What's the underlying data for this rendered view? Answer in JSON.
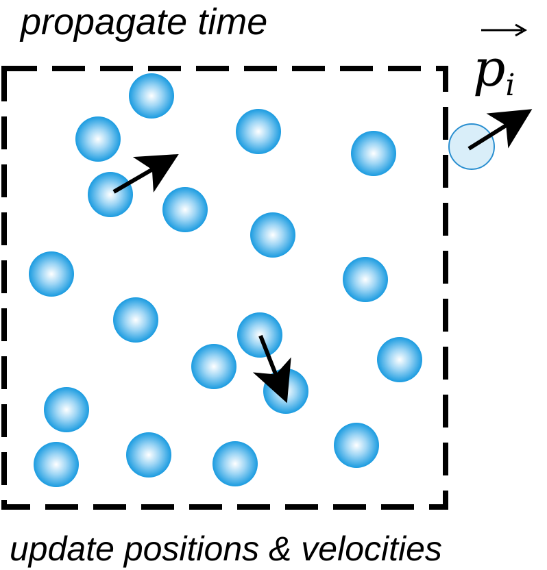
{
  "title": "propagate time",
  "footer": "update positions & velocities",
  "momentum_label": {
    "symbol": "p",
    "subscript": "i"
  },
  "colors": {
    "particle_edge": "#1a9be0",
    "particle_center": "#ffffff",
    "particle_mid": "#9fd6f5",
    "escaped_fill": "#d9eef9",
    "escaped_edge": "#2a8fd0",
    "arrow": "#000000",
    "box": "#000000"
  }
}
